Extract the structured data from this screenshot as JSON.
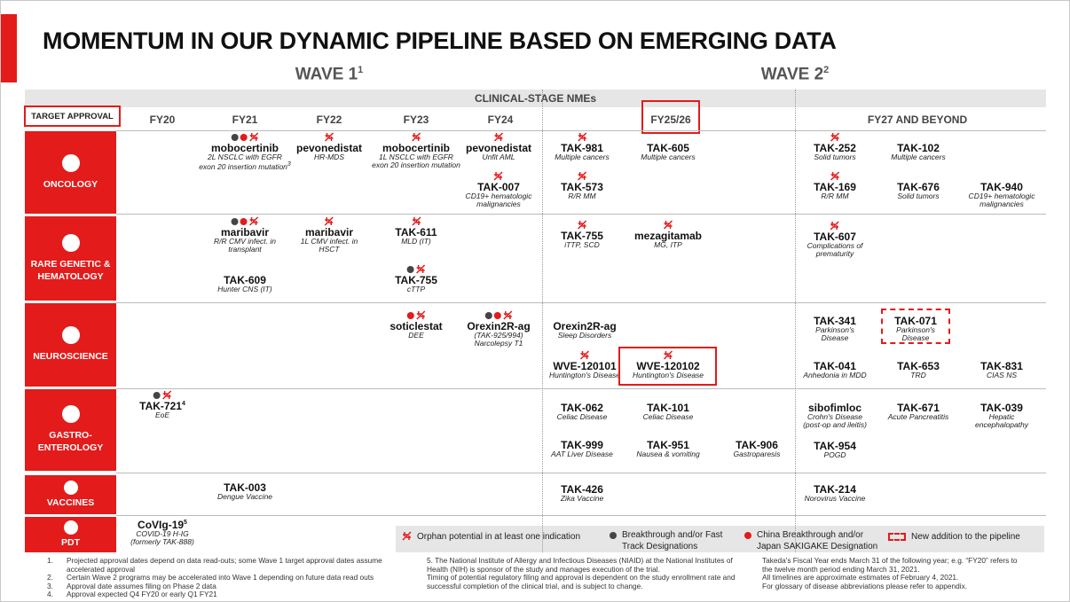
{
  "title": "MOMENTUM IN OUR DYNAMIC PIPELINE BASED ON EMERGING DATA",
  "waves": [
    {
      "label": "WAVE 1",
      "sup": "1"
    },
    {
      "label": "WAVE 2",
      "sup": "2"
    }
  ],
  "band": "CLINICAL-STAGE NMEs",
  "target_approval": "TARGET APPROVAL",
  "years": [
    "FY20",
    "FY21",
    "FY22",
    "FY23",
    "FY24",
    "FY25/26",
    "FY27 AND BEYOND"
  ],
  "areas": [
    {
      "lines": [
        "ONCOLOGY"
      ]
    },
    {
      "lines": [
        "RARE GENETIC &",
        "HEMATOLOGY"
      ]
    },
    {
      "lines": [
        "NEUROSCIENCE"
      ]
    },
    {
      "lines": [
        "GASTRO-",
        "ENTEROLOGY"
      ]
    },
    {
      "lines": [
        "VACCINES"
      ]
    },
    {
      "lines": [
        "PDT"
      ]
    }
  ],
  "items": [
    {
      "name": "mobocertinib",
      "sub": [
        "2L NSCLC with EGFR",
        "exon 20 insertion mutation"
      ],
      "sub_sup": "3",
      "breakthrough": true,
      "china": true,
      "orphan": true
    },
    {
      "name": "pevonedistat",
      "sub": [
        "HR-MDS"
      ],
      "orphan": true
    },
    {
      "name": "mobocertinib",
      "sub": [
        "1L NSCLC with EGFR",
        "exon 20 insertion mutation"
      ],
      "orphan": true
    },
    {
      "name": "pevonedistat",
      "sub": [
        "Unfit AML"
      ],
      "orphan": true
    },
    {
      "name": "TAK-007",
      "sub": [
        "CD19+ hematologic",
        "malignancies"
      ],
      "orphan": true
    },
    {
      "name": "TAK-981",
      "sub": [
        "Multiple cancers"
      ],
      "orphan": true
    },
    {
      "name": "TAK-605",
      "sub": [
        "Multiple cancers"
      ]
    },
    {
      "name": "TAK-573",
      "sub": [
        "R/R MM"
      ],
      "orphan": true
    },
    {
      "name": "TAK-252",
      "sub": [
        "Solid tumors"
      ],
      "orphan": true
    },
    {
      "name": "TAK-102",
      "sub": [
        "Multiple cancers"
      ]
    },
    {
      "name": "TAK-169",
      "sub": [
        "R/R MM"
      ],
      "orphan": true
    },
    {
      "name": "TAK-676",
      "sub": [
        "Solid tumors"
      ]
    },
    {
      "name": "TAK-940",
      "sub": [
        "CD19+ hematologic",
        "malignancies"
      ]
    },
    {
      "name": "maribavir",
      "sub": [
        "R/R CMV infect. in",
        "transplant"
      ],
      "breakthrough": true,
      "china": true,
      "orphan": true
    },
    {
      "name": "maribavir",
      "sub": [
        "1L CMV infect. in",
        "HSCT"
      ],
      "orphan": true
    },
    {
      "name": "TAK-611",
      "sub": [
        "MLD (IT)"
      ],
      "orphan": true
    },
    {
      "name": "TAK-609",
      "sub": [
        "Hunter CNS (IT)"
      ]
    },
    {
      "name": "TAK-755",
      "sub": [
        "cTTP"
      ],
      "breakthrough": true,
      "orphan": true
    },
    {
      "name": "TAK-755",
      "sub": [
        "iTTP, SCD"
      ],
      "orphan": true
    },
    {
      "name": "mezagitamab",
      "sub": [
        "MG, ITP"
      ],
      "orphan": true
    },
    {
      "name": "TAK-607",
      "sub": [
        "Complications of",
        "prematurity"
      ],
      "orphan": true
    },
    {
      "name": "soticlestat",
      "sub": [
        "DEE"
      ],
      "china": true,
      "orphan": true
    },
    {
      "name": "Orexin2R-ag",
      "sub": [
        "(TAK-925/994)",
        "Narcolepsy T1"
      ],
      "breakthrough": true,
      "china": true,
      "orphan": true
    },
    {
      "name": "Orexin2R-ag",
      "sub": [
        "Sleep Disorders"
      ]
    },
    {
      "name": "WVE-120101",
      "sub": [
        "Huntington's Disease"
      ],
      "orphan": true
    },
    {
      "name": "WVE-120102",
      "sub": [
        "Huntington's Disease"
      ],
      "orphan": true,
      "highlight": true
    },
    {
      "name": "TAK-341",
      "sub": [
        "Parkinson's",
        "Disease"
      ]
    },
    {
      "name": "TAK-071",
      "sub": [
        "Parkinson's",
        "Disease"
      ],
      "new": true
    },
    {
      "name": "TAK-041",
      "sub": [
        "Anhedonia in MDD"
      ]
    },
    {
      "name": "TAK-653",
      "sub": [
        "TRD"
      ]
    },
    {
      "name": "TAK-831",
      "sub": [
        "CIAS NS"
      ]
    },
    {
      "name": "TAK-721",
      "name_sup": "4",
      "sub": [
        "EoE"
      ],
      "breakthrough": true,
      "orphan": true
    },
    {
      "name": "TAK-062",
      "sub": [
        "Celiac Disease"
      ]
    },
    {
      "name": "TAK-101",
      "sub": [
        "Celiac Disease"
      ]
    },
    {
      "name": "TAK-999",
      "sub": [
        "AAT Liver Disease"
      ]
    },
    {
      "name": "TAK-951",
      "sub": [
        "Nausea & vomiting"
      ]
    },
    {
      "name": "TAK-906",
      "sub": [
        "Gastroparesis"
      ]
    },
    {
      "name": "sibofimloc",
      "sub": [
        "Crohn's Disease",
        "(post-op and ileitis)"
      ]
    },
    {
      "name": "TAK-671",
      "sub": [
        "Acute Pancreatitis"
      ]
    },
    {
      "name": "TAK-039",
      "sub": [
        "Hepatic",
        "encephalopathy"
      ]
    },
    {
      "name": "TAK-954",
      "sub": [
        "POGD"
      ]
    },
    {
      "name": "TAK-003",
      "sub": [
        "Dengue Vaccine"
      ]
    },
    {
      "name": "TAK-426",
      "sub": [
        "Zika Vaccine"
      ]
    },
    {
      "name": "TAK-214",
      "sub": [
        "Norovirus Vaccine"
      ]
    },
    {
      "name": "CoVIg-19",
      "name_sup": "5",
      "sub": [
        "COVID-19 H-IG",
        "(formerly TAK-888)"
      ]
    }
  ],
  "legend": {
    "orphan": "Orphan potential in at least one indication",
    "breakthrough": [
      "Breakthrough and/or Fast",
      "Track Designations"
    ],
    "china": [
      "China Breakthrough and/or",
      "Japan SAKIGAKE Designation"
    ],
    "new": "New addition to the pipeline"
  },
  "footnotes": [
    {
      "num": "1.",
      "text": "Projected approval dates depend on data read-outs; some Wave 1 target approval dates assume accelerated approval"
    },
    {
      "num": "2.",
      "text": "Certain Wave 2 programs may be accelerated into Wave 1 depending on future data read outs"
    },
    {
      "num": "3.",
      "text": "Approval date assumes filing on Phase 2 data"
    },
    {
      "num": "4.",
      "text": "Approval expected Q4 FY20 or early Q1 FY21"
    }
  ],
  "notes_middle": [
    "5. The National Institute of Allergy and Infectious Diseases (NIAID) at the National Institutes of Health (NIH) is sponsor of the study and manages execution of the trial.",
    "Timing of potential regulatory filing and approval is dependent on the study enrollment rate and successful completion of the clinical trial, and is subject to change."
  ],
  "notes_right": [
    "Takeda's Fiscal Year ends March 31 of the following year; e.g. “FY20” refers to the twelve month period ending March 31, 2021.",
    "All timelines are approximate estimates of February 4, 2021.",
    "For glossary of disease abbreviations please refer to appendix."
  ]
}
